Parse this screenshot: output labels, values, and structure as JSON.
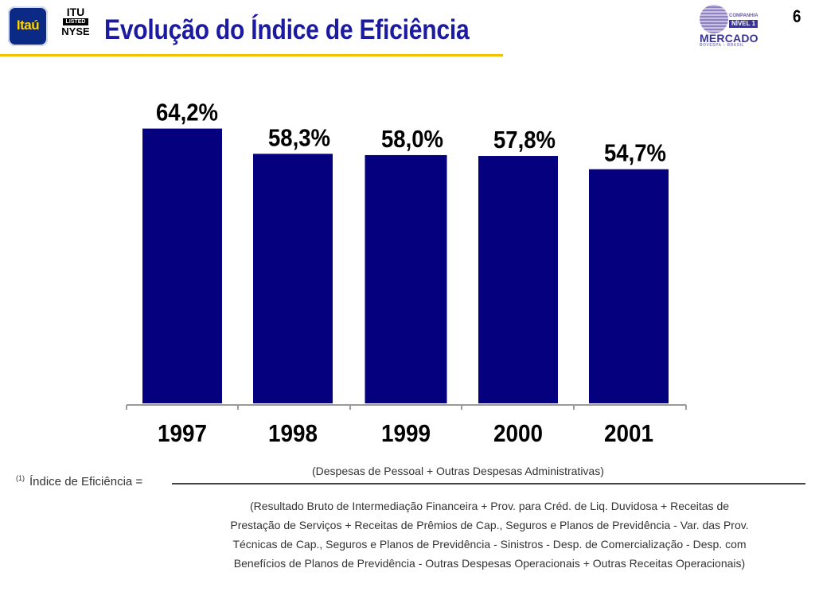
{
  "header": {
    "title": "Evolução do Índice de Eficiência",
    "itau_logo_text": "Itaú",
    "nyse_line1": "ITU",
    "nyse_line2": "LISTED",
    "nyse_line3": "NYSE",
    "nivel1_small": "COMPANHIA",
    "nivel1_box": "NÍVEL 1",
    "nivel1_mercado": "MERCADO",
    "nivel1_bovespa": "BOVESPA – BRASIL",
    "page_number": "6",
    "accent_color": "#1c1aa0",
    "rule_color": "#f4c000"
  },
  "chart_data": {
    "type": "bar",
    "categories": [
      "1997",
      "1998",
      "1999",
      "2000",
      "2001"
    ],
    "values": [
      64.2,
      58.3,
      58.0,
      57.8,
      54.7
    ],
    "value_labels": [
      "64,2%",
      "58,3%",
      "58,0%",
      "57,8%",
      "54,7%"
    ],
    "bar_color": "#04007e",
    "ylim": [
      0,
      100
    ],
    "grid": false,
    "legend": "none"
  },
  "formula": {
    "superscript": "(1)",
    "lhs": "Índice de Eficiência =",
    "numerator": "(Despesas de Pessoal + Outras Despesas Administrativas)",
    "denominator_lines": [
      "(Resultado Bruto de Intermediação Financeira + Prov. para Créd. de Liq. Duvidosa + Receitas de",
      "Prestação de Serviços + Receitas de Prêmios de Cap., Seguros e Planos de Previdência - Var. das Prov.",
      "Técnicas de Cap., Seguros e Planos de Previdência - Sinistros - Desp. de Comercialização - Desp. com",
      "Benefícios de Planos de Previdência - Outras Despesas Operacionais + Outras Receitas Operacionais)"
    ]
  }
}
